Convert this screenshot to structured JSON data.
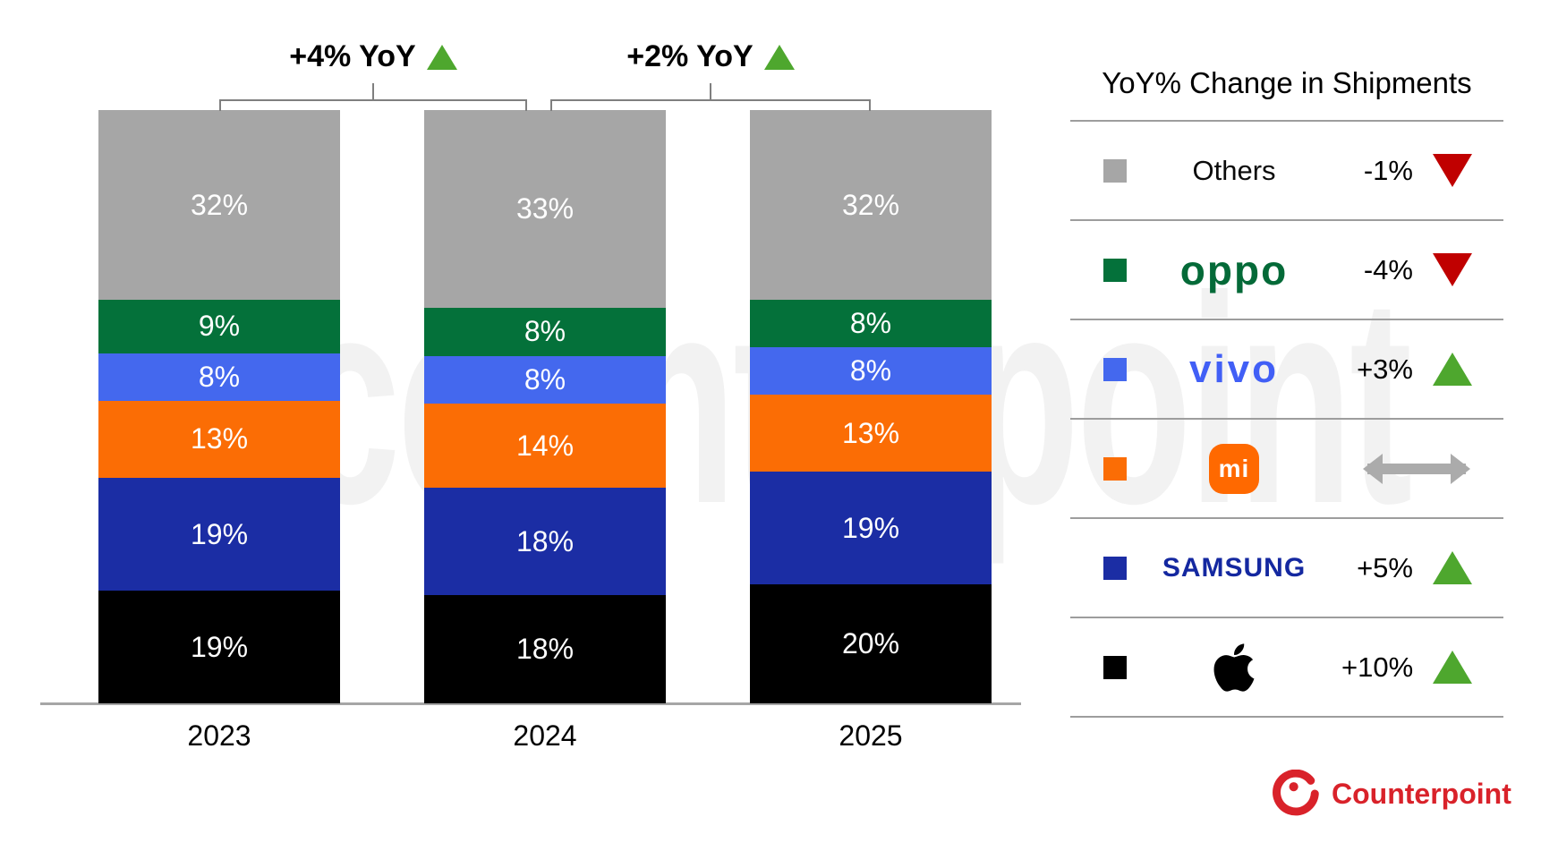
{
  "chart_data": {
    "type": "bar",
    "subtype": "stacked-100",
    "title": "",
    "categories": [
      "2023",
      "2024",
      "2025"
    ],
    "series": [
      {
        "name": "Apple",
        "color": "#000000",
        "values": [
          19,
          18,
          20
        ]
      },
      {
        "name": "Samsung",
        "color": "#1B2DA4",
        "values": [
          19,
          18,
          19
        ]
      },
      {
        "name": "Xiaomi",
        "color": "#FB6D05",
        "values": [
          13,
          14,
          13
        ]
      },
      {
        "name": "vivo",
        "color": "#4468EE",
        "values": [
          8,
          8,
          8
        ]
      },
      {
        "name": "OPPO",
        "color": "#04713A",
        "values": [
          9,
          8,
          8
        ]
      },
      {
        "name": "Others",
        "color": "#A6A6A6",
        "values": [
          32,
          33,
          32
        ]
      }
    ],
    "value_suffix": "%",
    "yoy_brackets": [
      {
        "between": [
          "2023",
          "2024"
        ],
        "label": "+4% YoY",
        "direction": "up"
      },
      {
        "between": [
          "2024",
          "2025"
        ],
        "label": "+2% YoY",
        "direction": "up"
      }
    ],
    "legend_position": "right",
    "grid": false
  },
  "legend": {
    "title": "YoY% Change in Shipments",
    "rows": [
      {
        "brand": "Others",
        "logo_text": "Others",
        "change": "-1%",
        "direction": "down"
      },
      {
        "brand": "OPPO",
        "logo_text": "oppo",
        "change": "-4%",
        "direction": "down"
      },
      {
        "brand": "vivo",
        "logo_text": "vivo",
        "change": "+3%",
        "direction": "up"
      },
      {
        "brand": "Xiaomi",
        "logo_text": "mi",
        "change": "",
        "direction": "flat"
      },
      {
        "brand": "Samsung",
        "logo_text": "SAMSUNG",
        "change": "+5%",
        "direction": "up"
      },
      {
        "brand": "Apple",
        "logo_text": "",
        "change": "+10%",
        "direction": "up"
      }
    ]
  },
  "colors": {
    "up_green": "#4EA72E",
    "down_red": "#C00000",
    "flat_gray": "#ABABAB",
    "axis_gray": "#A6A6A6",
    "counterpoint_red": "#D9222A"
  },
  "watermark": {
    "text": "counterpoint"
  },
  "footer": {
    "logo_text": "Counterpoint"
  }
}
